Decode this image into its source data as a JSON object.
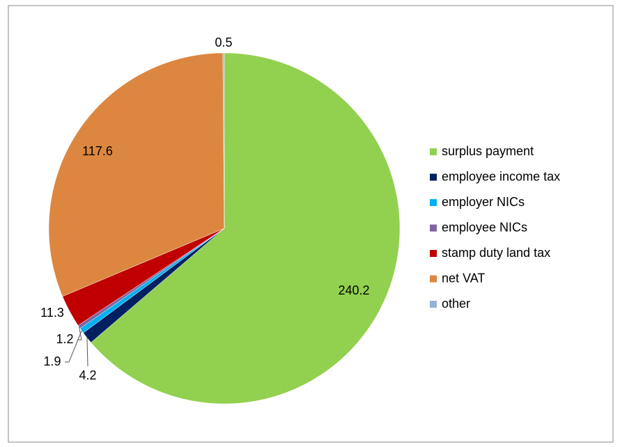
{
  "chart_data": {
    "type": "pie",
    "categories": [
      "surplus payment",
      "employee income tax",
      "employer NICs",
      "employee NICs",
      "stamp duty land tax",
      "net VAT",
      "other"
    ],
    "values": [
      240.2,
      4.2,
      1.9,
      1.2,
      11.3,
      117.6,
      0.5
    ],
    "colors": [
      "#92d050",
      "#002060",
      "#00b0f0",
      "#8064a2",
      "#c00000",
      "#dc8640",
      "#95b3d7"
    ],
    "legend": "right"
  }
}
